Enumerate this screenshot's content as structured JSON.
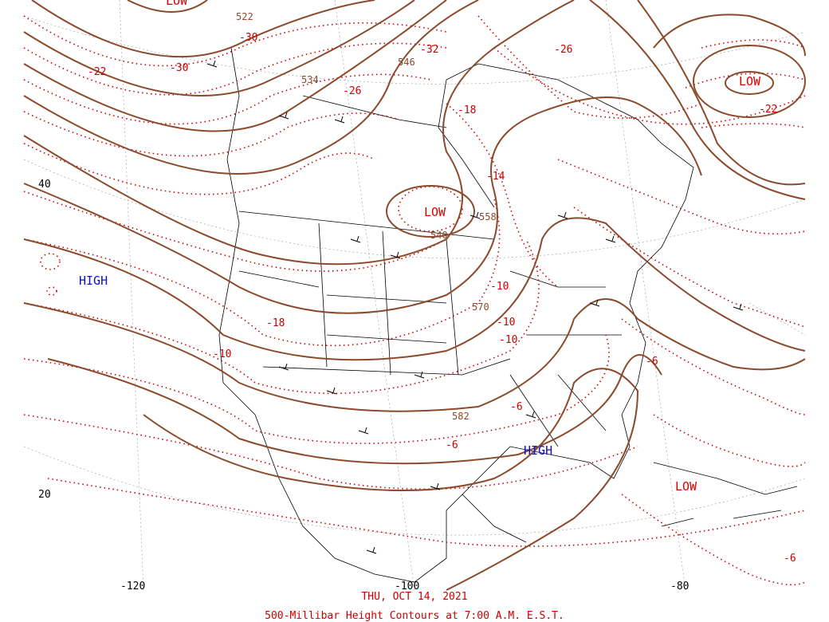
{
  "caption": {
    "date": "THU, OCT 14, 2021",
    "title": "500-Millibar Height Contours at 7:00 A.M. E.S.T."
  },
  "colors": {
    "height_contour": "#8b4a2b",
    "temperature": "#cc0000",
    "high": "#1010cc",
    "low": "#dd0000",
    "borders": "#000000"
  },
  "pressure_centers": [
    {
      "label": "LOW",
      "kind": "low"
    },
    {
      "label": "LOW",
      "kind": "low"
    },
    {
      "label": "LOW",
      "kind": "low"
    },
    {
      "label": "LOW",
      "kind": "low"
    },
    {
      "label": "HIGH",
      "kind": "high"
    },
    {
      "label": "HIGH",
      "kind": "high"
    }
  ],
  "height_labels": [
    "522",
    "534",
    "546",
    "558",
    "540",
    "570",
    "582"
  ],
  "temperature_labels": [
    "-30",
    "-22",
    "-30",
    "-26",
    "-32",
    "-26",
    "-18",
    "-14",
    "-22",
    "-18",
    "-10",
    "-10",
    "-10",
    "-10",
    "-6",
    "-6",
    "-6",
    "-6"
  ],
  "graticule_labels": [
    "40",
    "20",
    "-120",
    "-100",
    "-80"
  ]
}
